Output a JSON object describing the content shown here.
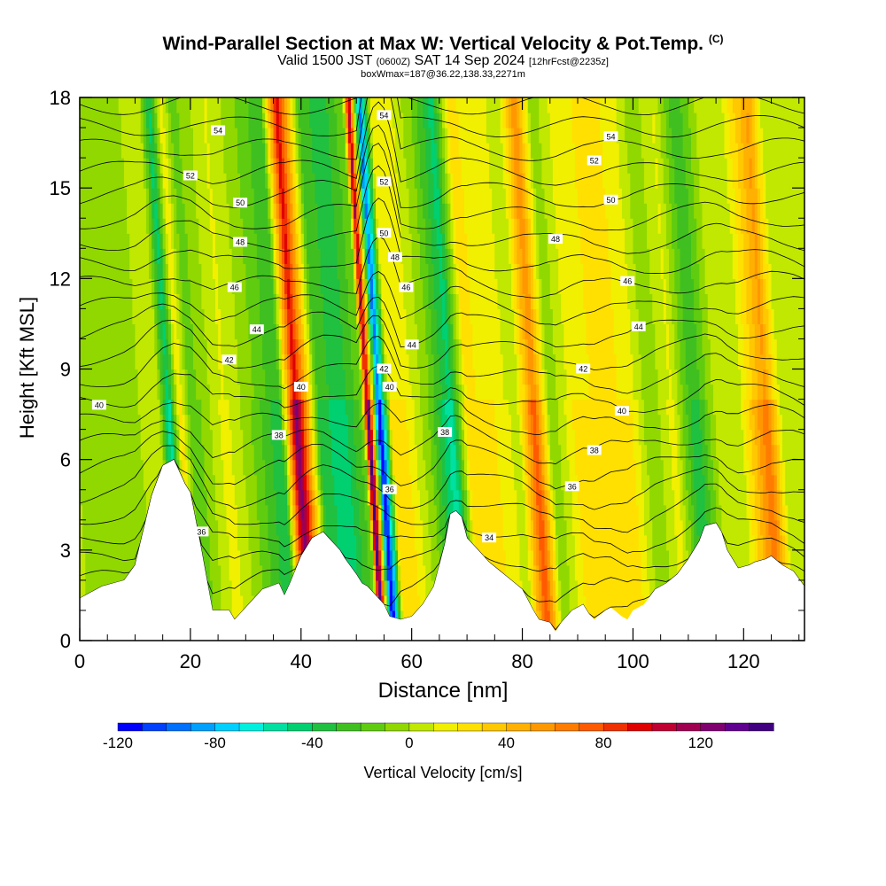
{
  "header": {
    "title": "Wind-Parallel Section at Max W: Vertical Velocity & Pot.Temp.",
    "title_tag": "(C)",
    "subtitle_a": "Valid 1500 JST",
    "subtitle_b": "(0600Z)",
    "subtitle_c": "SAT 14 Sep 2024",
    "subtitle_d": "[12hrFcst@2235z]",
    "subtitle2": "boxWmax=187@36.22,138.33,2271m"
  },
  "chart_data": {
    "type": "heatmap",
    "title": "Wind-Parallel Section at Max W: Vertical Velocity & Pot.Temp.",
    "xlabel": "Distance [nm]",
    "ylabel": "Height [Kft MSL]",
    "xlim": [
      0,
      131
    ],
    "ylim": [
      0,
      18
    ],
    "x_ticks": [
      "0",
      "20",
      "40",
      "60",
      "80",
      "100",
      "120"
    ],
    "y_ticks": [
      "0",
      "3",
      "6",
      "9",
      "12",
      "15",
      "18"
    ],
    "x_tick_values": [
      0,
      20,
      40,
      60,
      80,
      100,
      120
    ],
    "y_tick_values": [
      0,
      3,
      6,
      9,
      12,
      15,
      18
    ],
    "colorbar": {
      "label": "Vertical Velocity [cm/s]",
      "min": -120,
      "max": 150,
      "step": 10,
      "tick_labels": [
        "-120",
        "-80",
        "-40",
        "0",
        "40",
        "80",
        "120"
      ],
      "tick_values": [
        -120,
        -80,
        -40,
        0,
        40,
        80,
        120
      ],
      "colors": [
        "#0000ff",
        "#0040ff",
        "#0070ff",
        "#00a0ff",
        "#00d0ff",
        "#00f0e0",
        "#00e0a0",
        "#00d070",
        "#20c040",
        "#40c020",
        "#60cc10",
        "#90d800",
        "#c0e800",
        "#f0f000",
        "#ffe000",
        "#ffc800",
        "#ffb000",
        "#ff9800",
        "#ff7c00",
        "#ff5a00",
        "#f03000",
        "#e00000",
        "#c00030",
        "#a00050",
        "#800070",
        "#600090",
        "#400080"
      ]
    },
    "terrain_kft": [
      [
        0,
        1.4
      ],
      [
        4,
        1.8
      ],
      [
        8,
        2.0
      ],
      [
        10,
        2.5
      ],
      [
        13,
        4.8
      ],
      [
        15,
        5.8
      ],
      [
        17,
        6.0
      ],
      [
        19,
        5.2
      ],
      [
        20,
        4.9
      ],
      [
        22,
        3.0
      ],
      [
        23,
        2.0
      ],
      [
        24,
        1.0
      ],
      [
        25,
        1.0
      ],
      [
        27,
        1.0
      ],
      [
        28,
        0.7
      ],
      [
        29,
        0.9
      ],
      [
        31,
        1.3
      ],
      [
        33,
        1.7
      ],
      [
        36,
        1.9
      ],
      [
        37,
        1.5
      ],
      [
        38,
        1.9
      ],
      [
        40,
        2.8
      ],
      [
        42,
        3.4
      ],
      [
        44,
        3.6
      ],
      [
        45,
        3.4
      ],
      [
        47,
        3.0
      ],
      [
        48,
        2.7
      ],
      [
        50,
        2.2
      ],
      [
        51,
        1.9
      ],
      [
        52,
        1.8
      ],
      [
        53,
        1.6
      ],
      [
        55,
        1.2
      ],
      [
        56,
        0.8
      ],
      [
        58,
        0.7
      ],
      [
        60,
        0.8
      ],
      [
        62,
        1.2
      ],
      [
        64,
        1.8
      ],
      [
        66,
        3.2
      ],
      [
        67,
        4.2
      ],
      [
        68,
        4.3
      ],
      [
        69,
        4.1
      ],
      [
        70,
        3.4
      ],
      [
        72,
        3.0
      ],
      [
        74,
        2.6
      ],
      [
        76,
        2.3
      ],
      [
        78,
        2.0
      ],
      [
        80,
        1.7
      ],
      [
        82,
        1.0
      ],
      [
        83,
        0.7
      ],
      [
        85,
        0.6
      ],
      [
        86,
        0.3
      ],
      [
        87,
        0.6
      ],
      [
        89,
        1.0
      ],
      [
        91,
        1.2
      ],
      [
        92,
        0.9
      ],
      [
        93,
        0.7
      ],
      [
        95,
        1.0
      ],
      [
        96,
        1.1
      ],
      [
        98,
        0.8
      ],
      [
        99,
        0.7
      ],
      [
        100,
        1.0
      ],
      [
        102,
        1.2
      ],
      [
        104,
        1.7
      ],
      [
        106,
        1.9
      ],
      [
        108,
        2.2
      ],
      [
        110,
        2.7
      ],
      [
        112,
        3.3
      ],
      [
        113,
        3.8
      ],
      [
        115,
        3.9
      ],
      [
        116,
        3.6
      ],
      [
        117,
        3.0
      ],
      [
        118,
        2.7
      ],
      [
        119,
        2.4
      ],
      [
        121,
        2.5
      ],
      [
        122,
        2.6
      ],
      [
        124,
        2.7
      ],
      [
        125,
        2.8
      ],
      [
        127,
        2.5
      ],
      [
        129,
        2.3
      ],
      [
        131,
        1.8
      ]
    ],
    "w_bands": [
      {
        "x": 0,
        "w": 0
      },
      {
        "x": 10,
        "w": -5
      },
      {
        "x": 15,
        "w": 10
      },
      {
        "x": 17,
        "w": -60
      },
      {
        "x": 19,
        "w": 25
      },
      {
        "x": 21,
        "w": -20
      },
      {
        "x": 27,
        "w": 15
      },
      {
        "x": 31,
        "w": -5
      },
      {
        "x": 37,
        "w": -40
      },
      {
        "x": 40,
        "w": 130
      },
      {
        "x": 44,
        "w": -30
      },
      {
        "x": 48,
        "w": -50
      },
      {
        "x": 52,
        "w": -15
      },
      {
        "x": 53,
        "w": 150
      },
      {
        "x": 55,
        "w": -130
      },
      {
        "x": 57,
        "w": 20
      },
      {
        "x": 60,
        "w": 20
      },
      {
        "x": 64,
        "w": -10
      },
      {
        "x": 68,
        "w": -60
      },
      {
        "x": 71,
        "w": 30
      },
      {
        "x": 76,
        "w": 20
      },
      {
        "x": 80,
        "w": 5
      },
      {
        "x": 83,
        "w": 80
      },
      {
        "x": 86,
        "w": -10
      },
      {
        "x": 90,
        "w": 20
      },
      {
        "x": 95,
        "w": 30
      },
      {
        "x": 100,
        "w": 25
      },
      {
        "x": 104,
        "w": -10
      },
      {
        "x": 108,
        "w": 15
      },
      {
        "x": 112,
        "w": -40
      },
      {
        "x": 116,
        "w": 5
      },
      {
        "x": 120,
        "w": 5
      },
      {
        "x": 125,
        "w": 70
      },
      {
        "x": 128,
        "w": 0
      },
      {
        "x": 131,
        "w": 5
      }
    ],
    "theta_levels": [
      34,
      35,
      36,
      37,
      38,
      39,
      40,
      41,
      42,
      43,
      44,
      45,
      46,
      47,
      48,
      49,
      50,
      51,
      52,
      53,
      54,
      55,
      56,
      57
    ],
    "contour_labels": [
      {
        "text": "40",
        "x": 3.5,
        "y": 7.8
      },
      {
        "text": "42",
        "x": 27,
        "y": 9.3
      },
      {
        "text": "44",
        "x": 32,
        "y": 10.3
      },
      {
        "text": "46",
        "x": 28,
        "y": 11.7
      },
      {
        "text": "48",
        "x": 29,
        "y": 13.2
      },
      {
        "text": "50",
        "x": 29,
        "y": 14.5
      },
      {
        "text": "52",
        "x": 20,
        "y": 15.4
      },
      {
        "text": "54",
        "x": 25,
        "y": 16.9
      },
      {
        "text": "40",
        "x": 40,
        "y": 8.4
      },
      {
        "text": "38",
        "x": 36,
        "y": 6.8
      },
      {
        "text": "36",
        "x": 22,
        "y": 3.6
      },
      {
        "text": "54",
        "x": 55,
        "y": 17.4
      },
      {
        "text": "52",
        "x": 55,
        "y": 15.2
      },
      {
        "text": "50",
        "x": 55,
        "y": 13.5
      },
      {
        "text": "48",
        "x": 57,
        "y": 12.7
      },
      {
        "text": "46",
        "x": 59,
        "y": 11.7
      },
      {
        "text": "44",
        "x": 60,
        "y": 9.8
      },
      {
        "text": "42",
        "x": 55,
        "y": 9.0
      },
      {
        "text": "40",
        "x": 56,
        "y": 8.4
      },
      {
        "text": "36",
        "x": 56,
        "y": 5.0
      },
      {
        "text": "38",
        "x": 66,
        "y": 6.9
      },
      {
        "text": "34",
        "x": 74,
        "y": 3.4
      },
      {
        "text": "36",
        "x": 89,
        "y": 5.1
      },
      {
        "text": "38",
        "x": 93,
        "y": 6.3
      },
      {
        "text": "40",
        "x": 98,
        "y": 7.6
      },
      {
        "text": "42",
        "x": 91,
        "y": 9.0
      },
      {
        "text": "44",
        "x": 101,
        "y": 10.4
      },
      {
        "text": "46",
        "x": 99,
        "y": 11.9
      },
      {
        "text": "48",
        "x": 86,
        "y": 13.3
      },
      {
        "text": "50",
        "x": 96,
        "y": 14.6
      },
      {
        "text": "52",
        "x": 93,
        "y": 15.9
      },
      {
        "text": "54",
        "x": 96,
        "y": 16.7
      }
    ],
    "grid": false,
    "legend": "colorbar-bottom"
  }
}
